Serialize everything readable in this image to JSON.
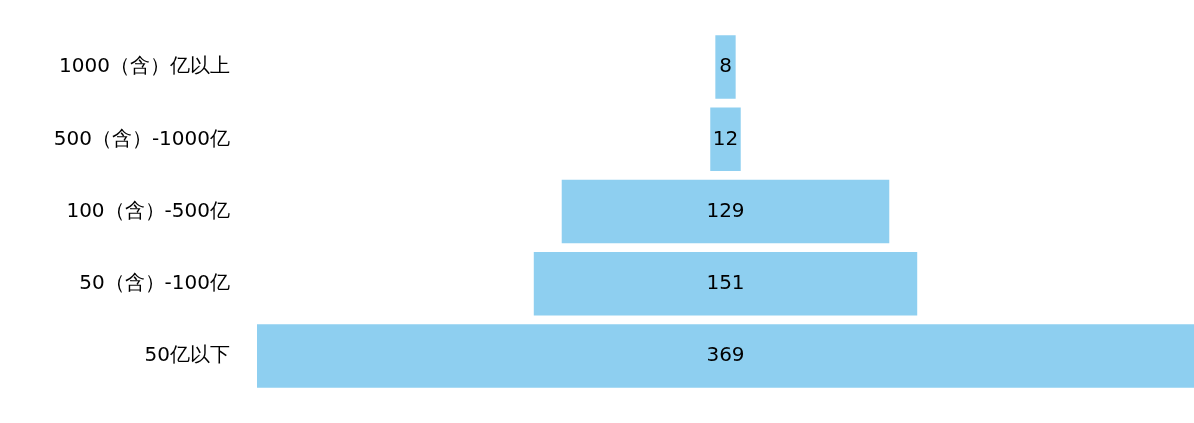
{
  "chart_data": {
    "type": "other",
    "categories": [
      "1000（含）亿以上",
      "500（含）-1000亿",
      "100（含）-500亿",
      "50（含）-100亿",
      "50亿以下"
    ],
    "values": [
      8,
      12,
      129,
      151,
      369
    ],
    "color": "#8ecff0",
    "data_labels": true
  }
}
